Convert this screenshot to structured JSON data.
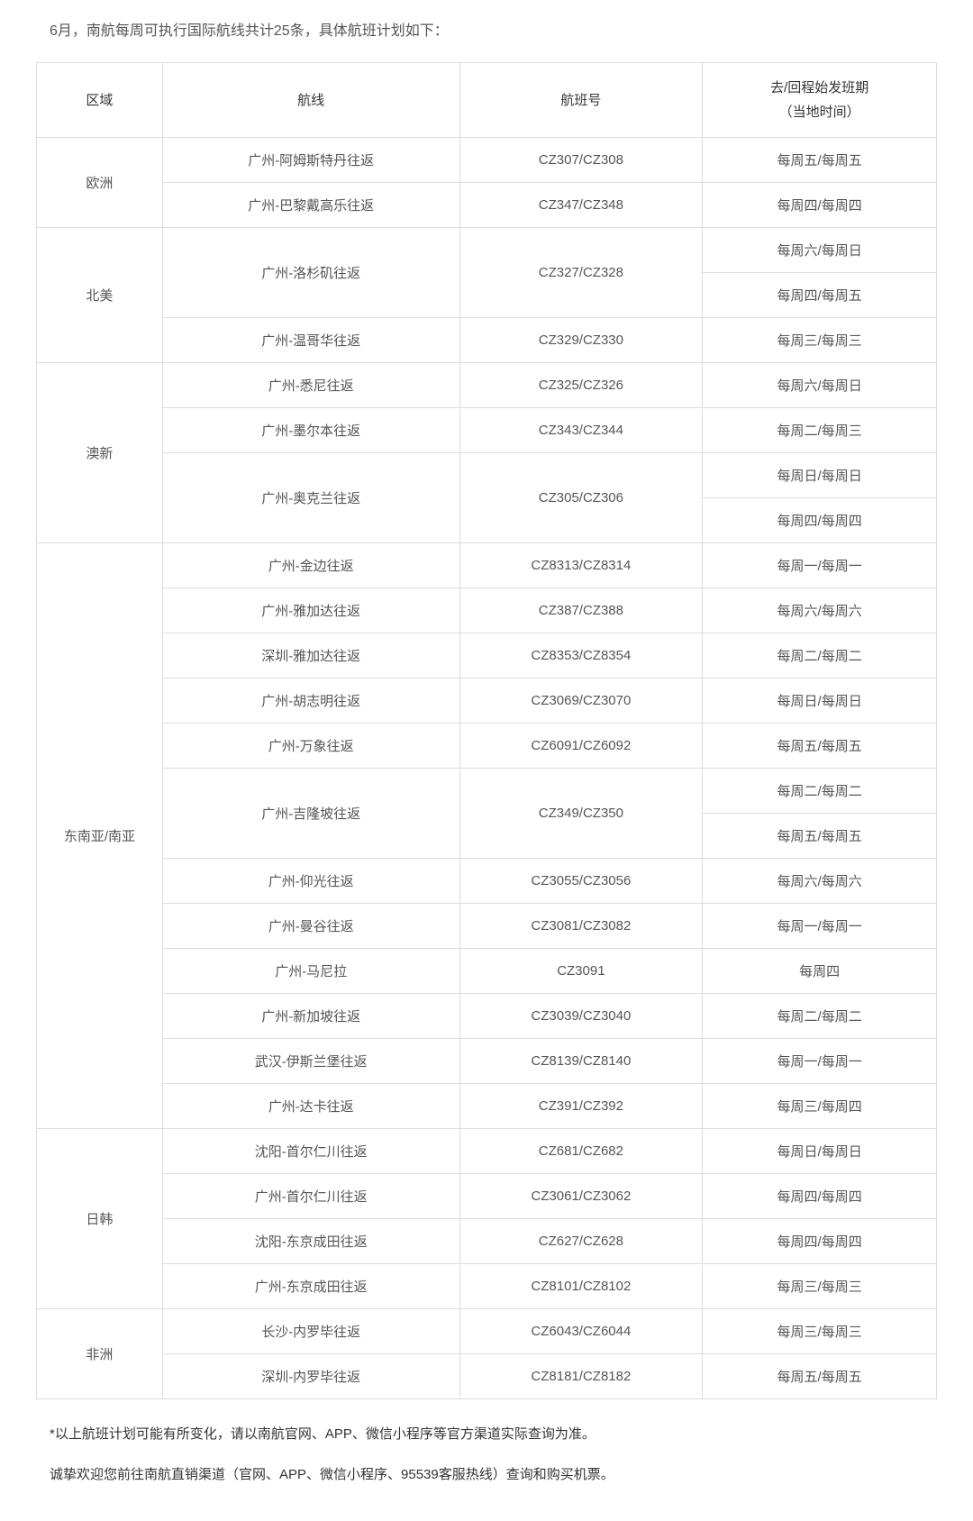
{
  "intro": "6月，南航每周可执行国际航线共计25条，具体航班计划如下：",
  "table": {
    "headers": {
      "region": "区域",
      "route": "航线",
      "flight_no": "航班号",
      "schedule": "去/回程始发班期\n（当地时间）"
    },
    "columns_width": {
      "region": "14%",
      "route": "33%",
      "flight_no": "27%",
      "schedule": "26%"
    },
    "border_color": "#dddddd",
    "text_color": "#555555",
    "font_size": 15,
    "regions": [
      {
        "name": "欧洲",
        "rows": [
          {
            "route": "广州-阿姆斯特丹往返",
            "flight_no": "CZ307/CZ308",
            "schedule": "每周五/每周五"
          },
          {
            "route": "广州-巴黎戴高乐往返",
            "flight_no": "CZ347/CZ348",
            "schedule": "每周四/每周四"
          }
        ]
      },
      {
        "name": "北美",
        "rows": [
          {
            "route": "广州-洛杉矶往返",
            "route_rowspan": 2,
            "flight_no": "CZ327/CZ328",
            "flight_rowspan": 2,
            "schedule": "每周六/每周日"
          },
          {
            "schedule": "每周四/每周五"
          },
          {
            "route": "广州-温哥华往返",
            "flight_no": "CZ329/CZ330",
            "schedule": "每周三/每周三"
          }
        ]
      },
      {
        "name": "澳新",
        "rows": [
          {
            "route": "广州-悉尼往返",
            "flight_no": "CZ325/CZ326",
            "schedule": "每周六/每周日"
          },
          {
            "route": "广州-墨尔本往返",
            "flight_no": "CZ343/CZ344",
            "schedule": "每周二/每周三"
          },
          {
            "route": "广州-奥克兰往返",
            "route_rowspan": 2,
            "flight_no": "CZ305/CZ306",
            "flight_rowspan": 2,
            "schedule": "每周日/每周日"
          },
          {
            "schedule": "每周四/每周四"
          }
        ]
      },
      {
        "name": "东南亚/南亚",
        "rows": [
          {
            "route": "广州-金边往返",
            "flight_no": "CZ8313/CZ8314",
            "schedule": "每周一/每周一"
          },
          {
            "route": "广州-雅加达往返",
            "flight_no": "CZ387/CZ388",
            "schedule": "每周六/每周六"
          },
          {
            "route": "深圳-雅加达往返",
            "flight_no": "CZ8353/CZ8354",
            "schedule": "每周二/每周二"
          },
          {
            "route": "广州-胡志明往返",
            "flight_no": "CZ3069/CZ3070",
            "schedule": "每周日/每周日"
          },
          {
            "route": "广州-万象往返",
            "flight_no": "CZ6091/CZ6092",
            "schedule": "每周五/每周五"
          },
          {
            "route": "广州-吉隆坡往返",
            "route_rowspan": 2,
            "flight_no": "CZ349/CZ350",
            "flight_rowspan": 2,
            "schedule": "每周二/每周二"
          },
          {
            "schedule": "每周五/每周五"
          },
          {
            "route": "广州-仰光往返",
            "flight_no": "CZ3055/CZ3056",
            "schedule": "每周六/每周六"
          },
          {
            "route": "广州-曼谷往返",
            "flight_no": "CZ3081/CZ3082",
            "schedule": "每周一/每周一"
          },
          {
            "route": "广州-马尼拉",
            "flight_no": "CZ3091",
            "schedule": "每周四"
          },
          {
            "route": "广州-新加坡往返",
            "flight_no": "CZ3039/CZ3040",
            "schedule": "每周二/每周二"
          },
          {
            "route": "武汉-伊斯兰堡往返",
            "flight_no": "CZ8139/CZ8140",
            "schedule": "每周一/每周一"
          },
          {
            "route": "广州-达卡往返",
            "flight_no": "CZ391/CZ392",
            "schedule": "每周三/每周四"
          }
        ]
      },
      {
        "name": "日韩",
        "rows": [
          {
            "route": "沈阳-首尔仁川往返",
            "flight_no": "CZ681/CZ682",
            "schedule": "每周日/每周日"
          },
          {
            "route": "广州-首尔仁川往返",
            "flight_no": "CZ3061/CZ3062",
            "schedule": "每周四/每周四"
          },
          {
            "route": "沈阳-东京成田往返",
            "flight_no": "CZ627/CZ628",
            "schedule": "每周四/每周四"
          },
          {
            "route": "广州-东京成田往返",
            "flight_no": "CZ8101/CZ8102",
            "schedule": "每周三/每周三"
          }
        ]
      },
      {
        "name": "非洲",
        "rows": [
          {
            "route": "长沙-内罗毕往返",
            "flight_no": "CZ6043/CZ6044",
            "schedule": "每周三/每周三"
          },
          {
            "route": "深圳-内罗毕往返",
            "flight_no": "CZ8181/CZ8182",
            "schedule": "每周五/每周五"
          }
        ]
      }
    ]
  },
  "footer": {
    "note1": "*以上航班计划可能有所变化，请以南航官网、APP、微信小程序等官方渠道实际查询为准。",
    "note2": "诚挚欢迎您前往南航直销渠道（官网、APP、微信小程序、95539客服热线）查询和购买机票。"
  }
}
